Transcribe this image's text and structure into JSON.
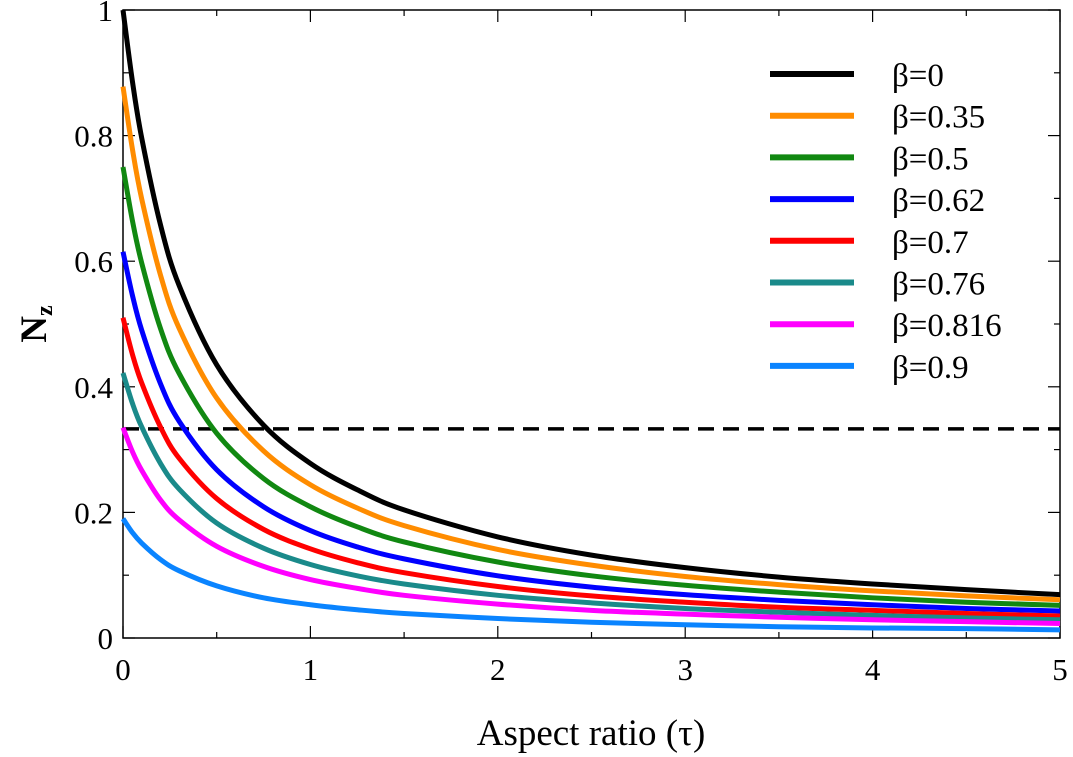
{
  "chart_data": {
    "type": "line",
    "title": "",
    "xlabel": "Aspect ratio (τ)",
    "ylabel": {
      "main": "N",
      "sub": "z"
    },
    "xlim": [
      0,
      5
    ],
    "ylim": [
      0,
      1
    ],
    "x_ticks": [
      "0",
      "1",
      "2",
      "3",
      "4",
      "5"
    ],
    "y_ticks": [
      "0",
      "0.2",
      "0.4",
      "0.6",
      "0.8",
      "1"
    ],
    "grid": false,
    "legend_position": "top-right",
    "reference_line": {
      "y": 0.333,
      "style": "dashed",
      "color": "#000000"
    },
    "x": [
      0,
      0.05,
      0.1,
      0.2,
      0.3,
      0.5,
      0.75,
      1,
      1.25,
      1.5,
      2,
      2.5,
      3,
      3.5,
      4,
      4.5,
      5
    ],
    "series": [
      {
        "name": "β=0",
        "color": "#000000",
        "values": [
          1.0,
          0.887,
          0.796,
          0.658,
          0.561,
          0.435,
          0.339,
          0.278,
          0.236,
          0.204,
          0.161,
          0.132,
          0.112,
          0.097,
          0.086,
          0.077,
          0.069
        ]
      },
      {
        "name": "β=0.35",
        "color": "#ff8c00",
        "values": [
          0.878,
          0.779,
          0.699,
          0.578,
          0.493,
          0.382,
          0.298,
          0.244,
          0.207,
          0.179,
          0.141,
          0.116,
          0.098,
          0.085,
          0.075,
          0.067,
          0.061
        ]
      },
      {
        "name": "β=0.5",
        "color": "#118811",
        "values": [
          0.75,
          0.665,
          0.597,
          0.493,
          0.421,
          0.326,
          0.254,
          0.209,
          0.177,
          0.153,
          0.121,
          0.099,
          0.084,
          0.073,
          0.064,
          0.057,
          0.052
        ]
      },
      {
        "name": "β=0.62",
        "color": "#0000ff",
        "values": [
          0.615,
          0.546,
          0.49,
          0.405,
          0.345,
          0.268,
          0.209,
          0.171,
          0.145,
          0.126,
          0.099,
          0.081,
          0.069,
          0.06,
          0.053,
          0.047,
          0.043
        ]
      },
      {
        "name": "β=0.7",
        "color": "#ff0000",
        "values": [
          0.51,
          0.452,
          0.406,
          0.336,
          0.286,
          0.222,
          0.173,
          0.142,
          0.12,
          0.104,
          0.082,
          0.067,
          0.057,
          0.049,
          0.044,
          0.039,
          0.035
        ]
      },
      {
        "name": "β=0.76",
        "color": "#1a8a8a",
        "values": [
          0.422,
          0.374,
          0.336,
          0.278,
          0.237,
          0.183,
          0.143,
          0.117,
          0.099,
          0.086,
          0.068,
          0.056,
          0.047,
          0.041,
          0.036,
          0.032,
          0.029
        ]
      },
      {
        "name": "β=0.816",
        "color": "#ff00ff",
        "values": [
          0.335,
          0.297,
          0.267,
          0.22,
          0.188,
          0.146,
          0.114,
          0.093,
          0.079,
          0.068,
          0.054,
          0.044,
          0.038,
          0.033,
          0.029,
          0.026,
          0.023
        ]
      },
      {
        "name": "β=0.9",
        "color": "#0a84ff",
        "values": [
          0.19,
          0.168,
          0.151,
          0.125,
          0.107,
          0.083,
          0.064,
          0.053,
          0.045,
          0.039,
          0.031,
          0.025,
          0.021,
          0.018,
          0.016,
          0.015,
          0.013
        ]
      }
    ]
  }
}
